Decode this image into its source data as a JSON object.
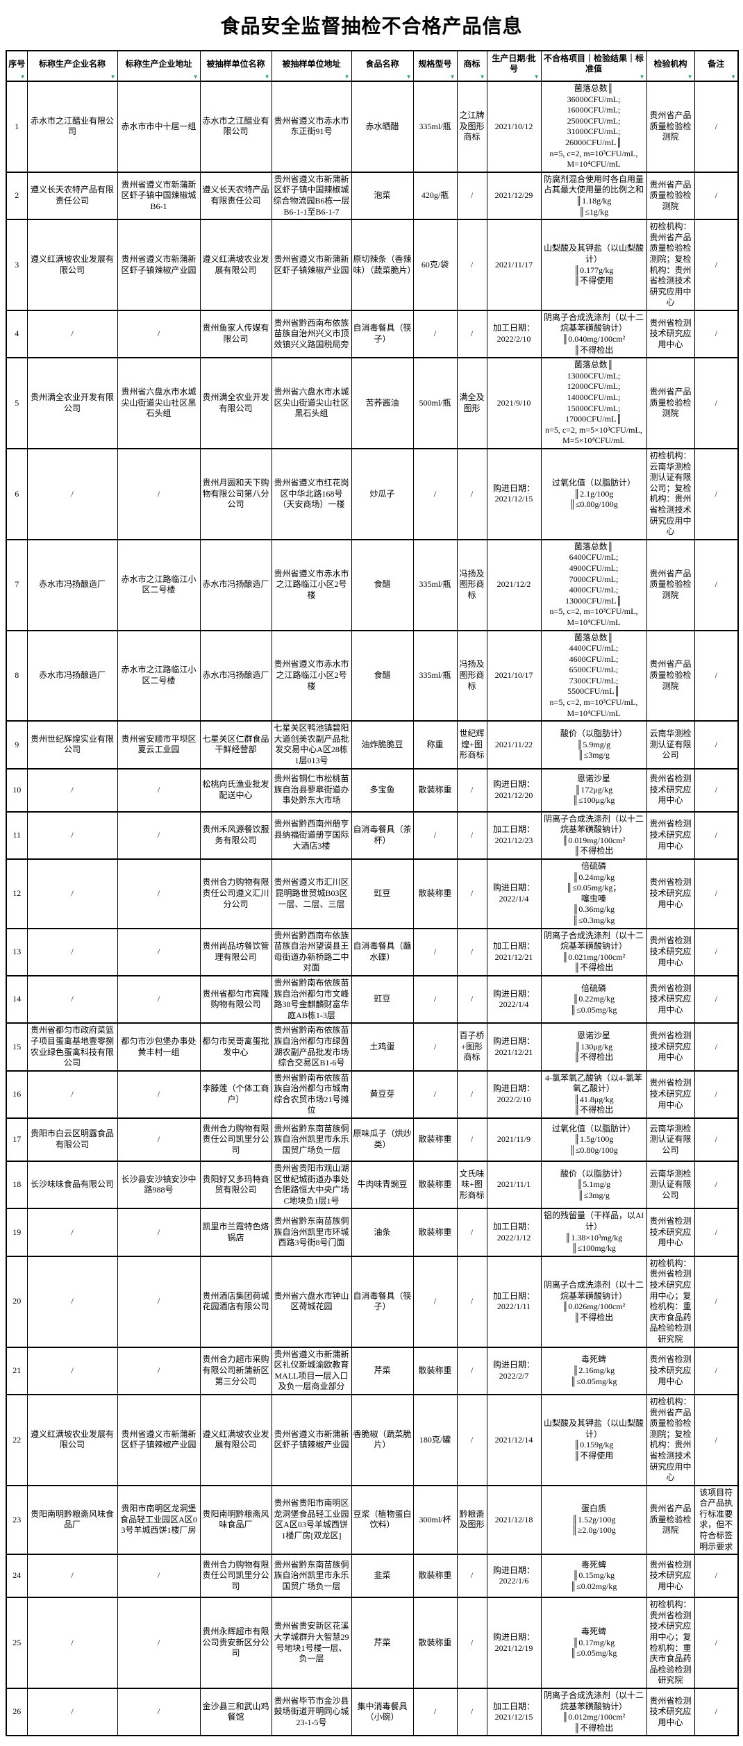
{
  "title": "食品安全监督抽检不合格产品信息",
  "filter_icon": {
    "glyph": "▼",
    "color": "#2aa076"
  },
  "table": {
    "column_names": [
      "index",
      "producer-name",
      "producer-address",
      "sampled-unit-name",
      "sampled-unit-address",
      "food-name",
      "spec",
      "trademark",
      "date-batch",
      "failed-item",
      "agency",
      "remark"
    ],
    "headers": [
      {
        "label": "序号"
      },
      {
        "label": "标称生产企业名称"
      },
      {
        "label": "标称生产企业地址"
      },
      {
        "label": "被抽样单位名称"
      },
      {
        "label": "被抽样单位地址"
      },
      {
        "label": "食品名称"
      },
      {
        "label": "规格型号"
      },
      {
        "label": "商标"
      },
      {
        "label": "生产日期/批号"
      },
      {
        "label": "不合格项目｜检验结果｜标准值"
      },
      {
        "label": "检验机构"
      },
      {
        "label": "备注"
      }
    ],
    "rows": [
      [
        "1",
        "赤水市之江醋业有限公司",
        "赤水市市中十居一组",
        "赤水市之江醋业有限公司",
        "贵州省遵义市赤水市东正街91号",
        "赤水晒醋",
        "335ml/瓶",
        "之江牌及图形商标",
        "2021/10/12",
        "菌落总数║\n36000CFU/mL;\n16000CFU/mL;\n25000CFU/mL;\n31000CFU/mL;\n26000CFU/mL║\nn=5, c=2, m=10³CFU/mL,\nM=10⁴CFU/mL",
        "贵州省产品质量检验检测院",
        "/"
      ],
      [
        "2",
        "遵义长天农特产品有限责任公司",
        "贵州省遵义市新蒲新区虾子镇中国辣椒城B6-1",
        "遵义长天农特产品有限责任公司",
        "贵州省遵义市新蒲新区虾子镇中国辣椒城综合物流园B6栋一层B6-1-1至B6-1-7",
        "泡菜",
        "420g/瓶",
        "/",
        "2021/12/29",
        "防腐剂混合使用时各自用量占其最大使用量的比例之和\n║1.18g/kg\n║≤1g/kg",
        "贵州省产品质量检验检测院",
        "/"
      ],
      [
        "3",
        "遵义红满坡农业发展有限公司",
        "贵州省遵义市新蒲新区虾子镇辣椒产业园",
        "遵义红满坡农业发展有限公司",
        "贵州省遵义市新蒲新区虾子镇辣椒产业园",
        "原切辣条（香辣味）（蔬菜脆片）",
        "60克/袋",
        "/",
        "2021/11/17",
        "山梨酸及其钾盐（以山梨酸计）\n║0.177g/kg\n║不得使用",
        "初检机构：贵州省产品质量检验检测院；复检机构：贵州省检测技术研究应用中心",
        "/"
      ],
      [
        "4",
        "/",
        "/",
        "贵州鱼家人传媒有限公司",
        "贵州省黔西南布依族苗族自治州兴义市顶效镇兴义路国税局旁",
        "自消毒餐具（筷子）",
        "/",
        "/",
        "加工日期：\n2022/2/10",
        "阴离子合成洗涤剂（以十二烷基苯磺酸钠计）\n║0.040mg/100cm²\n║不得检出",
        "贵州省检测技术研究应用中心",
        "/"
      ],
      [
        "5",
        "贵州满全农业开发有限公司",
        "贵州省六盘水市水城尖山街道尖山社区黑石头组",
        "贵州满全农业开发有限公司",
        "贵州省六盘水市水城区尖山街道尖山社区黑石头组",
        "苦荞酱油",
        "500ml/瓶",
        "满全及图形",
        "2021/9/10",
        "菌落总数║\n13000CFU/mL;\n12000CFU/mL;\n14000CFU/mL;\n15000CFU/mL;\n17000CFU/mL║\nn=5, c=2, m=5×10³CFU/mL,\nM=5×10⁴CFU/mL",
        "贵州省产品质量检验检测院",
        "/"
      ],
      [
        "6",
        "/",
        "/",
        "贵州月圆和天下购物有限公司第八分公司",
        "贵州省遵义市红花岗区中华北路168号（天安商场）一楼",
        "炒瓜子",
        "/",
        "/",
        "购进日期：\n2021/12/15",
        "过氧化值（以脂肪计）\n║2.1g/100g\n║≤0.80g/100g",
        "初检机构：云南华测检测认证有限公司；复检机构：贵州省检测技术研究应用中心",
        "/"
      ],
      [
        "7",
        "赤水市冯扬酿造厂",
        "赤水市之江路临江小区二号楼",
        "赤水市冯扬酿造厂",
        "贵州省遵义市赤水市之江路临江小区2号楼",
        "食醋",
        "335ml/瓶",
        "冯扬及图形商标",
        "2021/12/2",
        "菌落总数║\n6400CFU/mL;\n4900CFU/mL;\n7000CFU/mL;\n4000CFU/mL;\n13000CFU/mL║\nn=5, c=2, m=10³CFU/mL,\nM=10⁴CFU/mL",
        "贵州省产品质量检验检测院",
        "/"
      ],
      [
        "8",
        "赤水市冯扬酿造厂",
        "赤水市之江路临江小区二号楼",
        "赤水市冯扬酿造厂",
        "贵州省遵义市赤水市之江路临江小区2号楼",
        "食醋",
        "335ml/瓶",
        "冯扬及图形商标",
        "2021/10/17",
        "菌落总数║\n4400CFU/mL;\n4600CFU/mL;\n6500CFU/mL;\n7300CFU/mL;\n5500CFU/mL║\nn=5, c=2, m=10³CFU/mL,\nM=10⁴CFU/mL",
        "贵州省产品质量检验检测院",
        "/"
      ],
      [
        "9",
        "贵州世纪辉煌实业有限公司",
        "贵州省安顺市平坝区夏云工业园",
        "七星关区仁群食品干鲜经营部",
        "七星关区鸭池镇碧阳大道创美农副产品批发交易中心A区28栋1层013号",
        "油炸脆脆豆",
        "称重",
        "世纪辉煌+图形商标",
        "2021/11/22",
        "酸价（以脂肪计）\n║5.9mg/g\n║≤3mg/g",
        "云南华测检测认证有限公司",
        "/"
      ],
      [
        "10",
        "/",
        "/",
        "松桃向氏渔业批发配送中心",
        "贵州省铜仁市松桃苗族自治县蓼皋街道办事处黔东大市场",
        "多宝鱼",
        "散装称重",
        "/",
        "购进日期：\n2021/12/20",
        "恩诺沙星\n║172μg/kg\n║≤100μg/kg",
        "贵州省检测技术研究应用中心",
        "/"
      ],
      [
        "11",
        "/",
        "/",
        "贵州禾风源餐饮服务有限公司",
        "贵州省黔西南州册亨县纳福街道册亨国际大酒店3楼",
        "自消毒餐具（茶杯）",
        "/",
        "/",
        "加工日期：\n2021/12/23",
        "阴离子合成洗涤剂（以十二烷基苯磺酸钠计）\n║0.019mg/100cm²\n║不得检出",
        "贵州省检测技术研究应用中心",
        "/"
      ],
      [
        "12",
        "/",
        "/",
        "贵州合力购物有限责任公司遵义汇川分公司",
        "贵州省遵义市汇川区昆明路世贸城B03区一层、二层、三层",
        "豇豆",
        "散装称重",
        "/",
        "购进日期：\n2022/1/4",
        "倍硫磷\n║0.24mg/kg\n║≤0.05mg/kg；\n噻虫嗪\n║0.36mg/kg\n║≤0.3mg/kg",
        "贵州省检测技术研究应用中心",
        "/"
      ],
      [
        "13",
        "/",
        "/",
        "贵州尚品坊餐饮管理有限公司",
        "贵州省黔西南布依族苗族自治州望谟县王母街道办新桥路二中对面",
        "自消毒餐具（蘸水碟）",
        "/",
        "/",
        "加工日期：\n2021/12/21",
        "阴离子合成洗涤剂（以十二烷基苯磺酸钠计）\n║0.021mg/100cm²\n║不得检出",
        "贵州省检测技术研究应用中心",
        "/"
      ],
      [
        "14",
        "/",
        "/",
        "贵州省都匀市宾隆购物有限公司",
        "贵州省黔南布依族苗族自治州都匀市文峰路38号金麒麟财富华庭AB栋1-3层",
        "豇豆",
        "/",
        "/",
        "购进日期：\n2022/1/4",
        "倍硫磷\n║0.22mg/kg\n║≤0.05mg/kg",
        "贵州省检测技术研究应用中心",
        "/"
      ],
      [
        "15",
        "贵州省都匀市政府菜篮子项目蛋禽基地壹零捌农业绿色蛋禽科技有限公司",
        "都匀市沙包堡办事处黄丰村一组",
        "都匀市吴哥禽蛋批发中心",
        "贵州省黔南布依族苗族自治州都匀市绿茵湖农副产品批发市场综合交易区B1-6号",
        "土鸡蛋",
        "/",
        "百子桥+图形商标",
        "购进日期：\n2021/12/21",
        "恩诺沙星\n║130μg/kg\n║不得检出",
        "贵州省检测技术研究应用中心",
        "/"
      ],
      [
        "16",
        "/",
        "/",
        "李滕莲（个体工商户）",
        "贵州省黔南布依族苗族自治州都匀市城南综合农贸市场21号摊位",
        "黄豆芽",
        "/",
        "/",
        "购进日期：\n2022/2/10",
        "4-氯苯氧乙酸钠（以4-氯苯氧乙酸计）\n║41.8μg/kg\n║不得检出",
        "贵州省检测技术研究应用中心",
        "/"
      ],
      [
        "17",
        "贵阳市白云区明露食品有限公司",
        "/",
        "贵州合力购物有限责任公司凯里分公司",
        "贵州省黔东南苗族侗族自治州凯里市永乐国贸广场负一层",
        "原味瓜子（烘炒类）",
        "散装称重",
        "/",
        "2021/11/9",
        "过氧化值（以脂肪计）\n║1.5g/100g\n║≤0.80g/100g",
        "云南华测检测认证有限公司",
        "/"
      ],
      [
        "18",
        "长沙味味食品有限公司",
        "长沙县安沙镇安沙中路988号",
        "贵阳好又多玛特商贸有限公司",
        "贵州省贵阳市观山湖区世纪城街道办事处合肥路恒大中央广场C地块负1层1号",
        "牛肉味青豌豆",
        "散装称重",
        "文氏味味+图形商标",
        "2021/11/1",
        "酸价（以脂肪计）\n║5.1mg/g\n║≤3mg/g",
        "云南华测检测认证有限公司",
        "/"
      ],
      [
        "19",
        "/",
        "/",
        "凯里市兰霞特色烙锅店",
        "贵州省黔东南苗族侗族自治州凯里市环城西路3号街8号门面",
        "油条",
        "散装称重",
        "/",
        "加工日期：\n2022/1/12",
        "铝的残留量（干样品，以Al计）\n║1.38×10³mg/kg\n║≤100mg/kg",
        "贵州省检测技术研究应用中心",
        "/"
      ],
      [
        "20",
        "/",
        "/",
        "贵州酒店集团荷城花园酒店有限公司",
        "贵州省六盘水市钟山区荷城花园",
        "自消毒餐具（筷子）",
        "/",
        "/",
        "加工日期：\n2022/1/11",
        "阴离子合成洗涤剂（以十二烷基苯磺酸钠计）\n║0.026mg/100cm²\n║不得检出",
        "初检机构：贵州省检测技术研究应用中心；复检机构：重庆市食品药品检验检测研究院",
        "/"
      ],
      [
        "21",
        "/",
        "/",
        "贵州合力超市采购有限公司新蒲新区第三分公司",
        "贵州省遵义市新蒲新区礼仪新城渝欧教育MALL项目一层入口及负一层商业部分",
        "芹菜",
        "散装称重",
        "/",
        "购进日期：\n2022/2/7",
        "毒死蜱\n║2.16mg/kg\n║≤0.05mg/kg",
        "贵州省检测技术研究应用中心",
        "/"
      ],
      [
        "22",
        "遵义红满坡农业发展有限公司",
        "贵州省遵义市新蒲新区虾子镇辣椒产业园",
        "遵义红满坡农业发展有限公司",
        "贵州省遵义市新蒲新区虾子镇辣椒产业园",
        "香脆椒（蔬菜脆片）",
        "180克/罐",
        "/",
        "2021/12/14",
        "山梨酸及其钾盐（以山梨酸计）\n║0.159g/kg\n║不得使用",
        "初检机构：贵州省产品质量检验检测院；复检机构：贵州省检测技术研究应用中心",
        "/"
      ],
      [
        "23",
        "贵阳南明黔粮斋风味食品厂",
        "贵阳市南明区龙洞堡食品轻工业园区A区03号羊城西饼1楼厂房",
        "贵阳南明黔粮斋风味食品厂",
        "贵州省贵阳市南明区龙洞堡食品轻工业园区A区03号羊城西饼1楼厂房[双龙区]",
        "豆浆（植物蛋白饮料）",
        "300ml/杯",
        "黔粮斋及图形",
        "2021/12/18",
        "蛋白质\n║1.52g/100g\n║≥2.0g/100g",
        "贵州省产品质量检验检测院",
        "该项目符合产品执行标准要求，但不符合标签明示要求"
      ],
      [
        "24",
        "/",
        "/",
        "贵州合力购物有限责任公司凯里分公司",
        "贵州省黔东南苗族侗族自治州凯里市永乐国贸广场负一层",
        "韭菜",
        "散装称重",
        "/",
        "购进日期：\n2022/1/6",
        "毒死蜱\n║0.15mg/kg\n║≤0.02mg/kg",
        "贵州省检测技术研究应用中心",
        "/"
      ],
      [
        "25",
        "/",
        "/",
        "贵州永辉超市有限公司贵安新区分公司",
        "贵州省贵安新区花溪大学城群升大智慧29号地块1号楼一层、负一层",
        "芹菜",
        "散装称重",
        "/",
        "购进日期：\n2021/12/19",
        "毒死蜱\n║0.17mg/kg\n║≤0.05mg/kg",
        "初检机构：贵州省检测技术研究应用中心；复检机构：重庆市食品药品检验检测研究院",
        "/"
      ],
      [
        "26",
        "/",
        "/",
        "金沙县三和武山鸡餐馆",
        "贵州省毕节市金沙县鼓场街道开明同心城23-1-5号",
        "集中消毒餐具（小碗）",
        "/",
        "/",
        "加工日期：\n2021/12/15",
        "阴离子合成洗涤剂（以十二烷基苯磺酸钠计）\n║0.012mg/100cm²\n║不得检出",
        "贵州省检测技术研究应用中心",
        "/"
      ]
    ]
  }
}
